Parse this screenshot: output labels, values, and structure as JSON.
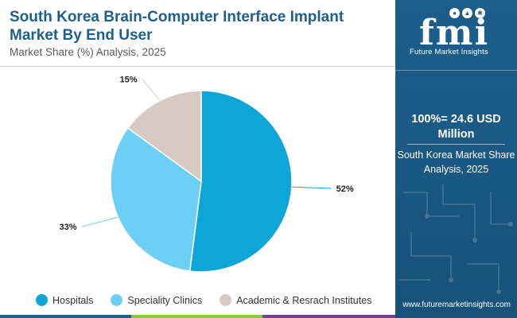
{
  "header": {
    "title": "South Korea Brain-Computer Interface Implant Market By End User",
    "subtitle": "Market Share (%) Analysis, 2025"
  },
  "chart_data": {
    "type": "pie",
    "categories": [
      "Hospitals",
      "Speciality Clinics",
      "Academic & Resrach Institutes"
    ],
    "values": [
      52,
      33,
      15
    ],
    "labels": [
      "52%",
      "33%",
      "15%"
    ],
    "colors": [
      "#0ea5d8",
      "#6ecff4",
      "#d6cac3"
    ],
    "title": "South Korea Brain-Computer Interface Implant Market By End User",
    "legend_position": "bottom"
  },
  "sidebar": {
    "logo_letters": "fmi",
    "logo_name": "Future Market Insights",
    "total_label": "100%= 24.6 USD Million",
    "subtitle": "South Korea Market Share Analysis, 2025",
    "website": "www.futuremarketinsights.com"
  },
  "colors": {
    "title": "#1f5f8b",
    "sidebar_bg": "#1c5f8a",
    "bar_blue": "#1c5f8a",
    "bar_green": "#8cc63f",
    "bar_purple": "#7a3e8e",
    "bar_orange": "#e8772e"
  }
}
